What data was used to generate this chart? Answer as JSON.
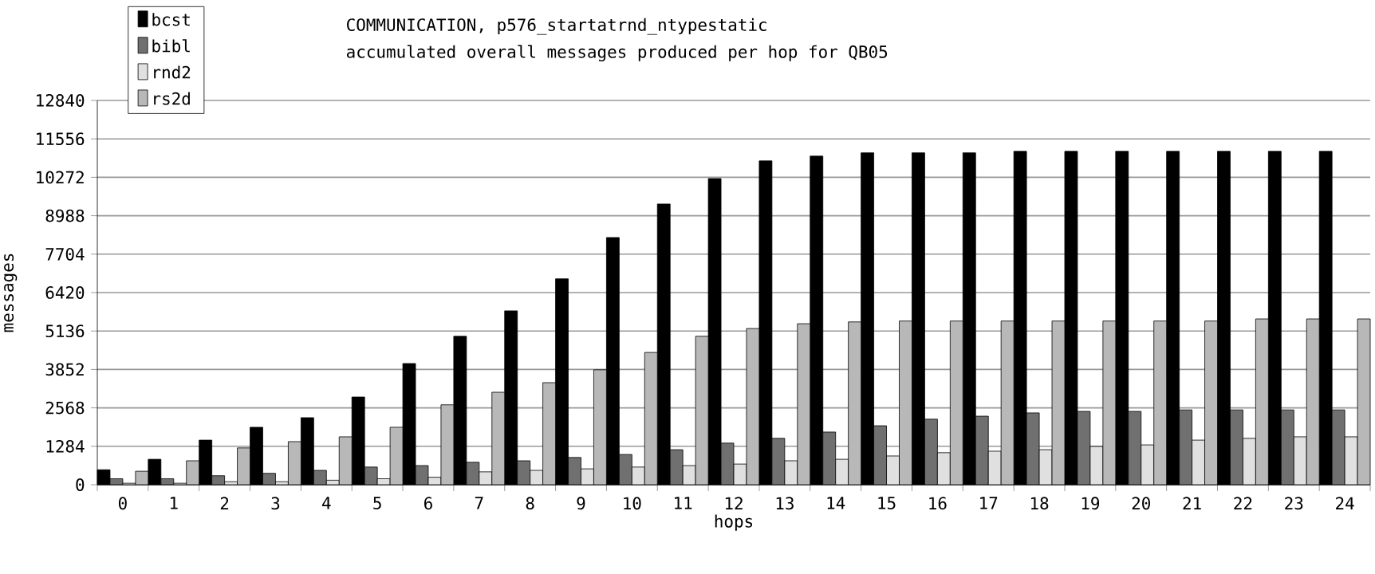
{
  "chart_data": {
    "type": "bar",
    "title": "COMMUNICATION, p576_startatrnd_ntypestatic",
    "subtitle": "accumulated overall messages produced per hop for QB05",
    "xlabel": "hops",
    "ylabel": "messages",
    "categories": [
      "0",
      "1",
      "2",
      "3",
      "4",
      "5",
      "6",
      "7",
      "8",
      "9",
      "10",
      "11",
      "12",
      "13",
      "14",
      "15",
      "16",
      "17",
      "18",
      "19",
      "20",
      "21",
      "22",
      "23",
      "24"
    ],
    "series": [
      {
        "name": "bcst",
        "color": "#000000",
        "values": [
          500,
          850,
          1490,
          1920,
          2240,
          2930,
          4050,
          4960,
          5810,
          6880,
          8260,
          9380,
          10230,
          10820,
          10980,
          11090,
          11090,
          11090,
          11140,
          11140,
          11140,
          11140,
          11140,
          11140,
          11140
        ]
      },
      {
        "name": "bibl",
        "color": "#707070",
        "values": [
          200,
          200,
          300,
          380,
          480,
          590,
          640,
          750,
          800,
          910,
          1010,
          1170,
          1390,
          1550,
          1760,
          1970,
          2190,
          2290,
          2400,
          2450,
          2450,
          2500,
          2500,
          2500,
          2500
        ]
      },
      {
        "name": "rnd2",
        "color": "#e0e0e0",
        "values": [
          50,
          50,
          100,
          100,
          150,
          200,
          250,
          430,
          480,
          530,
          590,
          640,
          690,
          800,
          850,
          960,
          1070,
          1120,
          1170,
          1280,
          1330,
          1490,
          1550,
          1600,
          1600
        ]
      },
      {
        "name": "rs2d",
        "color": "#b8b8b8",
        "values": [
          450,
          800,
          1230,
          1440,
          1600,
          1920,
          2670,
          3090,
          3410,
          3840,
          4420,
          4960,
          5220,
          5380,
          5440,
          5470,
          5470,
          5470,
          5470,
          5470,
          5470,
          5470,
          5540,
          5540,
          5540
        ]
      }
    ],
    "ylim": [
      0,
      12840
    ],
    "yticks": [
      0,
      1284,
      2568,
      3852,
      5136,
      6420,
      7704,
      8988,
      10272,
      11556,
      12840
    ],
    "grid": "y",
    "legend": "top left"
  }
}
